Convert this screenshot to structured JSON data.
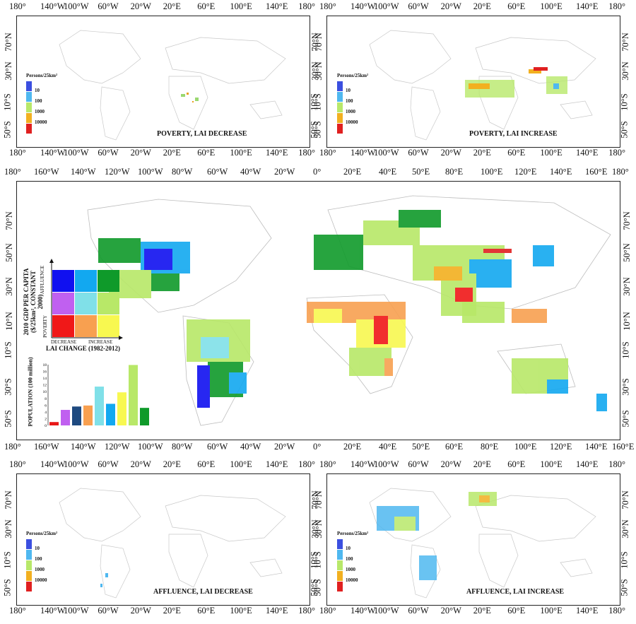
{
  "small_lon_ticks": [
    "180°",
    "140°W",
    "100°W",
    "60°W",
    "20°W",
    "20°E",
    "60°E",
    "100°E",
    "140°E",
    "180°"
  ],
  "small_lat_ticks": [
    "70°N",
    "30°N",
    "10°S",
    "50°S"
  ],
  "main_lon_ticks_top": [
    "180°",
    "160°W",
    "140°W",
    "120°W",
    "100°W",
    "80°W",
    "60°W",
    "40°W",
    "20°W",
    "0°",
    "20°E",
    "40°E",
    "50°E",
    "80°E",
    "100°E",
    "120°E",
    "140°E",
    "160°E",
    "180°"
  ],
  "main_lon_ticks_bottom": [
    "180°",
    "160°W",
    "140°W",
    "120°W",
    "100°W",
    "80°W",
    "60°W",
    "40°W",
    "20°W",
    "0°",
    "20°E",
    "40°E",
    "50°E",
    "60°E",
    "80°E",
    "100°E",
    "120°E",
    "140°E",
    "160°E",
    "180°"
  ],
  "main_lat_ticks": [
    "70°N",
    "50°N",
    "30°N",
    "10°N",
    "10°S",
    "30°S",
    "50°S"
  ],
  "panels": {
    "poverty_decrease": {
      "title": "POVERTY, LAI DECREASE"
    },
    "poverty_increase": {
      "title": "POVERTY, LAI INCREASE"
    },
    "affluence_decrease": {
      "title": "AFFLUENCE, LAI DECREASE"
    },
    "affluence_increase": {
      "title": "AFFLUENCE, LAI INCREASE"
    }
  },
  "density_legend": {
    "title": "Persons/25km²",
    "labels": [
      "10",
      "100",
      "1000",
      "10000"
    ],
    "colors": [
      "#3b4fe0",
      "#4fb8f0",
      "#b8e86a",
      "#f2b020",
      "#e02020"
    ]
  },
  "bivariate_legend": {
    "ylabel_line1": "2010 GDP PER CAPITA",
    "ylabel_line2": "($/25km², CONSTANT 2000)",
    "y_high": "AFFLUENCE",
    "y_low": "POVERTY",
    "x_low": "DECREASE",
    "x_high": "INCREASE",
    "xlabel": "LAI CHANGE (1982-2012)",
    "colors": [
      [
        "#1010f0",
        "#12a8f0",
        "#0f9a2a"
      ],
      [
        "#c060f0",
        "#80e0e8",
        "#b8e868"
      ],
      [
        "#f01818",
        "#f8a050",
        "#f8f850"
      ]
    ]
  },
  "chart_data": {
    "type": "bar",
    "ylabel": "POPULATION (100 million)",
    "ylim": [
      0,
      18
    ],
    "yticks": [
      0,
      2,
      4,
      6,
      8,
      10,
      12,
      14,
      16,
      18
    ],
    "values": [
      1.0,
      4.6,
      5.6,
      5.9,
      11.5,
      6.4,
      9.8,
      17.9,
      5.2
    ],
    "colors": [
      "#e81818",
      "#c060f0",
      "#1e4a80",
      "#f8a050",
      "#80e0e8",
      "#12a8f0",
      "#f8f850",
      "#b8e868",
      "#0f9a2a"
    ]
  }
}
